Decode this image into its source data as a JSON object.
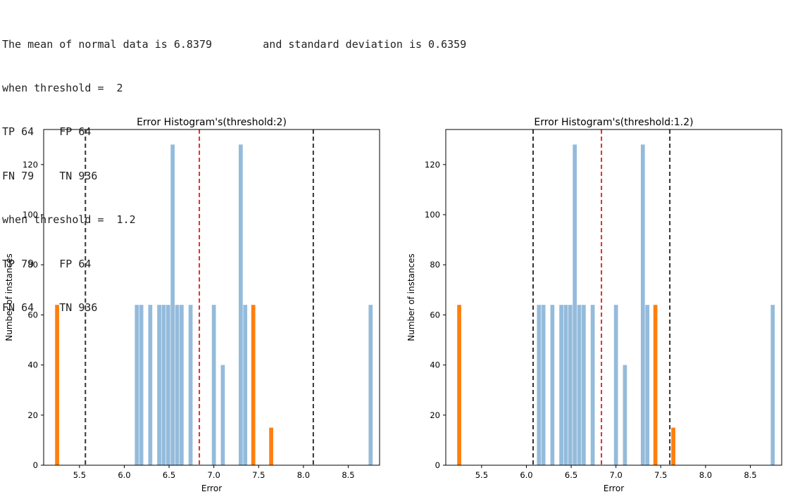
{
  "console": {
    "lines": [
      "The mean of normal data is 6.8379        and standard deviation is 0.6359",
      "when threshold =  2",
      "TP 64    FP 64",
      "FN 79    TN 936",
      "when threshold =  1.2",
      "TP 79    FP 64",
      "FN 64    TN 936"
    ]
  },
  "colors": {
    "normal": "#94bbdb",
    "anomaly": "#ff7f0e",
    "mean_line": "#e03030",
    "threshold_line": "#333333"
  },
  "chart_data": [
    {
      "type": "bar",
      "title": "Error Histogram's(threshold:2)",
      "xlabel": "Error",
      "ylabel": "Number of instances",
      "xlim": [
        5.1,
        8.85
      ],
      "ylim": [
        0,
        134
      ],
      "xticks": [
        5.5,
        6.0,
        6.5,
        7.0,
        7.5,
        8.0,
        8.5
      ],
      "yticks": [
        0,
        20,
        40,
        60,
        80,
        100,
        120
      ],
      "mean": 6.8379,
      "thresholds": [
        5.566,
        8.11
      ],
      "series": [
        {
          "values": [
            {
              "x": 6.14,
              "y": 64
            },
            {
              "x": 6.19,
              "y": 64
            },
            {
              "x": 6.29,
              "y": 64
            },
            {
              "x": 6.39,
              "y": 64
            },
            {
              "x": 6.44,
              "y": 64
            },
            {
              "x": 6.49,
              "y": 64
            },
            {
              "x": 6.54,
              "y": 128
            },
            {
              "x": 6.59,
              "y": 64
            },
            {
              "x": 6.64,
              "y": 64
            },
            {
              "x": 6.74,
              "y": 64
            },
            {
              "x": 7.0,
              "y": 64
            },
            {
              "x": 7.1,
              "y": 40
            },
            {
              "x": 7.3,
              "y": 128
            },
            {
              "x": 7.35,
              "y": 64
            },
            {
              "x": 8.75,
              "y": 64
            }
          ]
        },
        {
          "values": [
            {
              "x": 5.25,
              "y": 64
            },
            {
              "x": 7.44,
              "y": 64
            },
            {
              "x": 7.64,
              "y": 15
            }
          ]
        }
      ]
    },
    {
      "type": "bar",
      "title": "Error Histogram's(threshold:1.2)",
      "xlabel": "Error",
      "ylabel": "Number of instances",
      "xlim": [
        5.1,
        8.85
      ],
      "ylim": [
        0,
        134
      ],
      "xticks": [
        5.5,
        6.0,
        6.5,
        7.0,
        7.5,
        8.0,
        8.5
      ],
      "yticks": [
        0,
        20,
        40,
        60,
        80,
        100,
        120
      ],
      "mean": 6.8379,
      "thresholds": [
        6.075,
        7.601
      ],
      "series": [
        {
          "values": [
            {
              "x": 6.14,
              "y": 64
            },
            {
              "x": 6.19,
              "y": 64
            },
            {
              "x": 6.29,
              "y": 64
            },
            {
              "x": 6.39,
              "y": 64
            },
            {
              "x": 6.44,
              "y": 64
            },
            {
              "x": 6.49,
              "y": 64
            },
            {
              "x": 6.54,
              "y": 128
            },
            {
              "x": 6.59,
              "y": 64
            },
            {
              "x": 6.64,
              "y": 64
            },
            {
              "x": 6.74,
              "y": 64
            },
            {
              "x": 7.0,
              "y": 64
            },
            {
              "x": 7.1,
              "y": 40
            },
            {
              "x": 7.3,
              "y": 128
            },
            {
              "x": 7.35,
              "y": 64
            },
            {
              "x": 8.75,
              "y": 64
            }
          ]
        },
        {
          "values": [
            {
              "x": 5.25,
              "y": 64
            },
            {
              "x": 7.44,
              "y": 64
            },
            {
              "x": 7.64,
              "y": 15
            }
          ]
        }
      ]
    }
  ]
}
